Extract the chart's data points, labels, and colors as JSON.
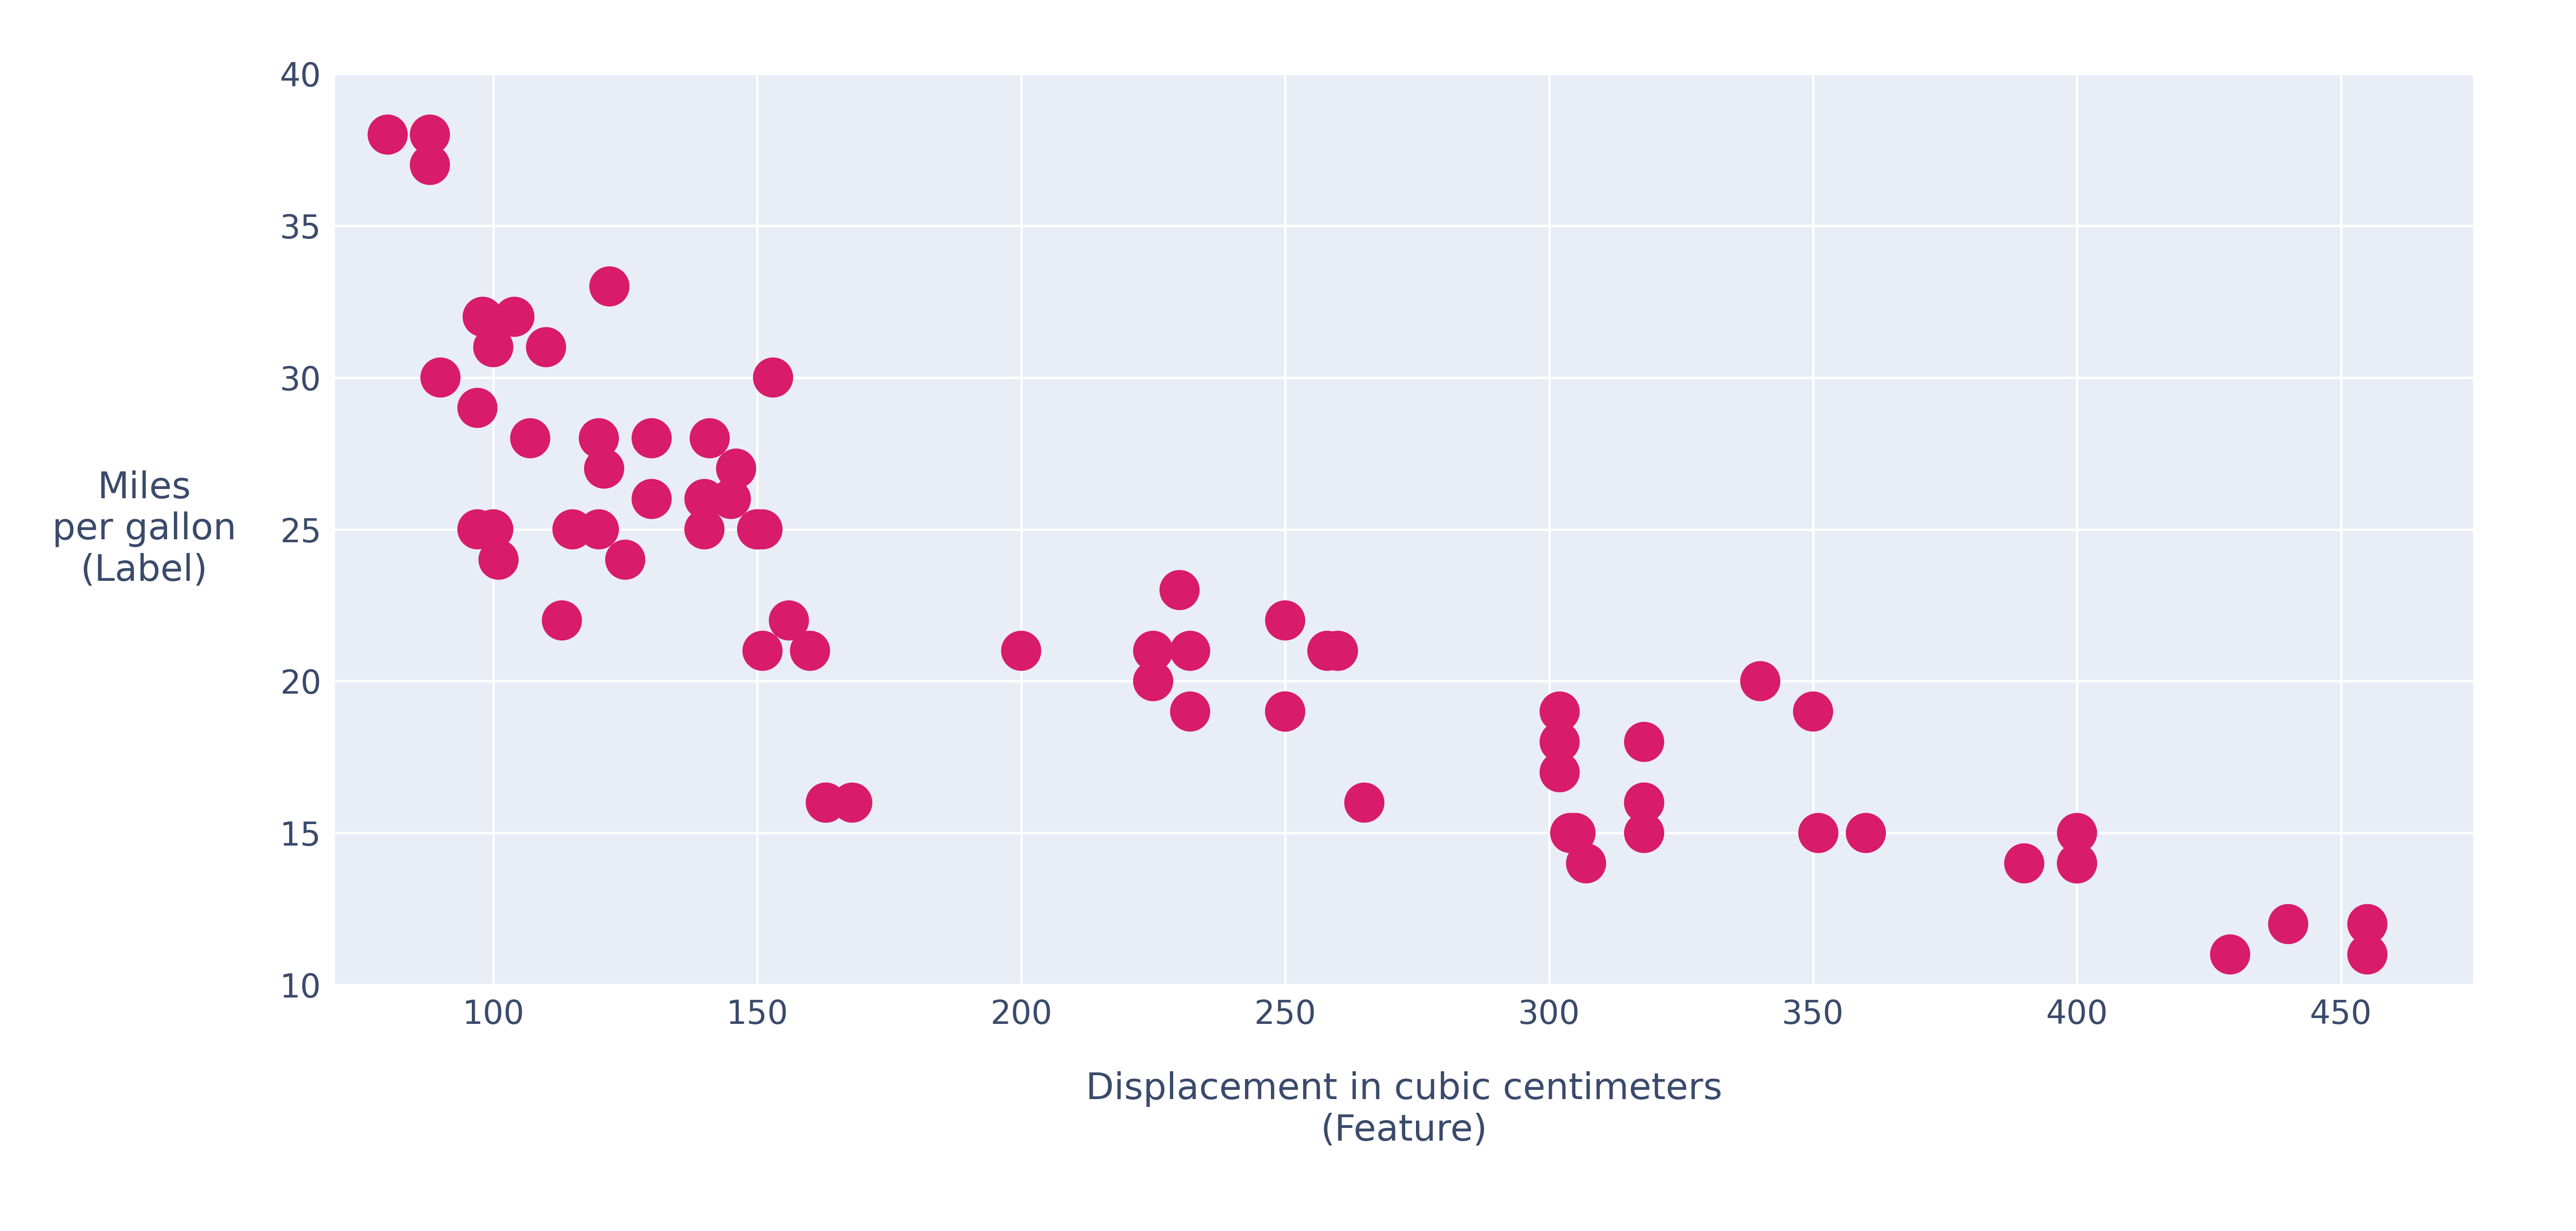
{
  "xlabel": "Displacement in cubic centimeters\n(Feature)",
  "ylabel": "Miles\nper gallon\n(Label)",
  "xlim": [
    70,
    475
  ],
  "ylim": [
    10,
    40
  ],
  "xticks": [
    100,
    150,
    200,
    250,
    300,
    350,
    400,
    450
  ],
  "yticks": [
    10,
    15,
    20,
    25,
    30,
    35,
    40
  ],
  "dot_color": "#D81B6A",
  "background_color": "#FFFFFF",
  "plot_bg_color": "#E8EDF6",
  "grid_color": "#FFFFFF",
  "tick_color": "#3A4A6B",
  "label_color": "#3A4A6B",
  "dot_size": 3500,
  "tick_fontsize": 48,
  "label_fontsize": 54,
  "x": [
    80,
    88,
    88,
    90,
    97,
    97,
    98,
    100,
    100,
    101,
    104,
    107,
    110,
    113,
    115,
    120,
    120,
    121,
    122,
    125,
    130,
    130,
    140,
    140,
    141,
    145,
    146,
    150,
    150,
    151,
    151,
    153,
    156,
    160,
    163,
    163,
    168,
    200,
    225,
    225,
    230,
    232,
    232,
    250,
    250,
    250,
    258,
    260,
    265,
    302,
    302,
    302,
    304,
    305,
    307,
    318,
    318,
    318,
    318,
    340,
    350,
    351,
    360,
    390,
    400,
    400,
    400,
    429,
    440,
    455,
    455
  ],
  "y": [
    38,
    37,
    38,
    30,
    29,
    25,
    32,
    25,
    31,
    24,
    32,
    28,
    31,
    22,
    25,
    28,
    25,
    27,
    33,
    24,
    26,
    28,
    25,
    26,
    28,
    26,
    27,
    25,
    25,
    21,
    25,
    30,
    22,
    21,
    16,
    16,
    16,
    21,
    21,
    20,
    23,
    19,
    21,
    22,
    19,
    19,
    21,
    21,
    16,
    17,
    18,
    19,
    15,
    15,
    14,
    18,
    16,
    15,
    16,
    20,
    19,
    15,
    15,
    14,
    14,
    14,
    15,
    11,
    12,
    12,
    11
  ]
}
